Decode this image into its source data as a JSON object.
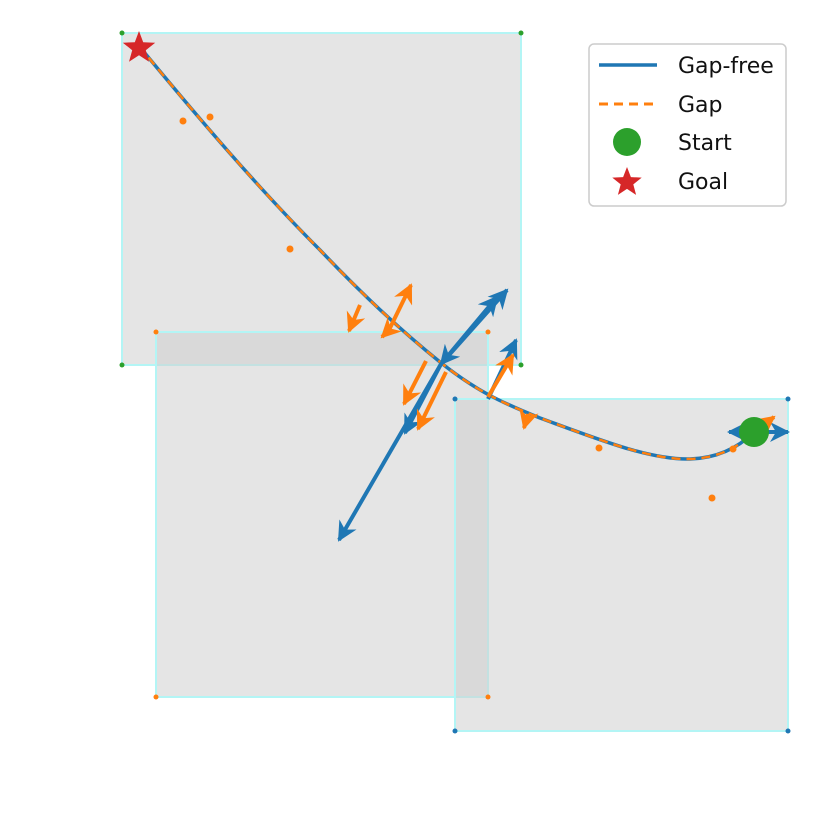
{
  "colors": {
    "gap_free": "#1f77b4",
    "gap": "#ff7f0e",
    "start": "#2ca02c",
    "goal": "#d62728",
    "region_fill": "#cfcfcf",
    "region_edge": "#b3f5f5"
  },
  "legend": {
    "gap_free_label": "Gap-free",
    "gap_label": "Gap",
    "start_label": "Start",
    "goal_label": "Goal"
  }
}
